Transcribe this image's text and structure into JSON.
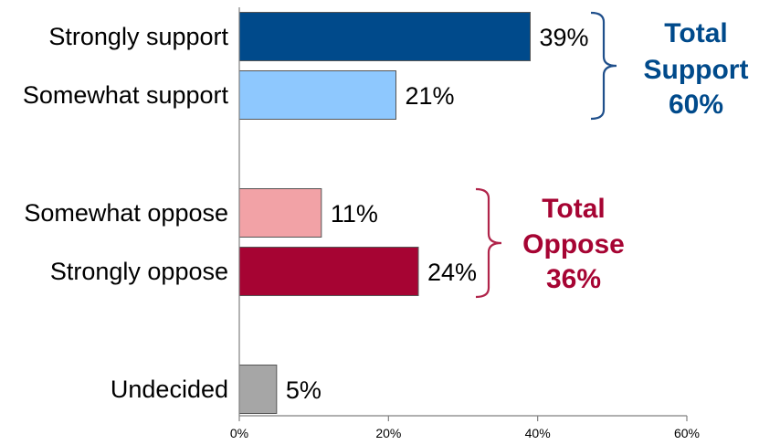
{
  "chart_data": {
    "type": "bar",
    "orientation": "horizontal",
    "categories": [
      "Strongly support",
      "Somewhat support",
      "Somewhat oppose",
      "Strongly oppose",
      "Undecided"
    ],
    "values": [
      39,
      21,
      11,
      24,
      5
    ],
    "value_labels": [
      "39%",
      "21%",
      "11%",
      "24%",
      "5%"
    ],
    "bar_colors": [
      "#004a8b",
      "#8ec8fe",
      "#f2a2a6",
      "#a60433",
      "#a6a6a6"
    ],
    "xlim": [
      0,
      60
    ],
    "xticks": [
      0,
      20,
      40,
      60
    ],
    "xtick_labels": [
      "0%",
      "20%",
      "40%",
      "60%"
    ],
    "grid": false,
    "groups": [
      {
        "lines": [
          "Total",
          "Support",
          "60%"
        ],
        "color": "#004a8b",
        "bracket_color": "#1f4f8b",
        "members": [
          0,
          1
        ]
      },
      {
        "lines": [
          "Total",
          "Oppose",
          "36%"
        ],
        "color": "#a60433",
        "bracket_color": "#b0244a",
        "members": [
          2,
          3
        ]
      }
    ]
  }
}
